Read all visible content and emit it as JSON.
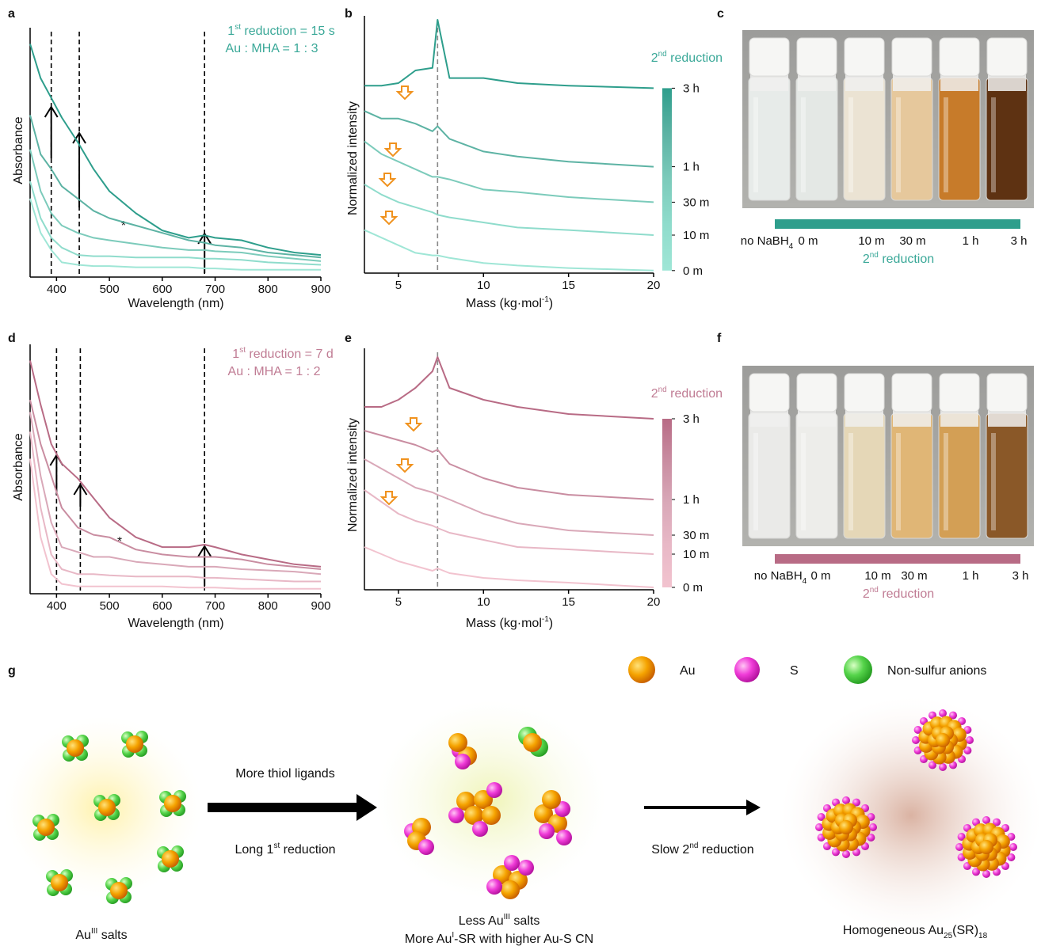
{
  "panel_labels": [
    "a",
    "b",
    "c",
    "d",
    "e",
    "f",
    "g"
  ],
  "chart_data": [
    {
      "type": "line",
      "xlabel": "Wavelength (nm)",
      "ylabel": "Absorbance",
      "annotation": {
        "line1": [
          "1",
          "st",
          " reduction = 15 s"
        ],
        "line2": "Au : MHA = 1 : 3"
      },
      "note_mark": "*",
      "xlim": [
        350,
        900
      ],
      "xticks": [
        400,
        500,
        600,
        700,
        800,
        900
      ],
      "ylim": [
        0,
        1
      ],
      "vlines": [
        390,
        443,
        680
      ],
      "x": [
        350,
        370,
        390,
        410,
        440,
        470,
        500,
        550,
        600,
        650,
        680,
        700,
        750,
        800,
        850,
        900
      ],
      "series": [
        {
          "color": "#2e9e8c",
          "values": [
            0.95,
            0.81,
            0.73,
            0.65,
            0.55,
            0.44,
            0.35,
            0.26,
            0.19,
            0.16,
            0.17,
            0.16,
            0.15,
            0.12,
            0.1,
            0.09
          ]
        },
        {
          "color": "#5db3a4",
          "values": [
            0.66,
            0.5,
            0.44,
            0.37,
            0.32,
            0.27,
            0.24,
            0.21,
            0.18,
            0.15,
            0.14,
            0.13,
            0.12,
            0.1,
            0.09,
            0.08
          ]
        },
        {
          "color": "#7ccbbb",
          "values": [
            0.52,
            0.35,
            0.26,
            0.21,
            0.18,
            0.16,
            0.15,
            0.135,
            0.12,
            0.11,
            0.11,
            0.105,
            0.1,
            0.085,
            0.075,
            0.065
          ]
        },
        {
          "color": "#8fdccc",
          "values": [
            0.39,
            0.24,
            0.16,
            0.12,
            0.09,
            0.085,
            0.085,
            0.08,
            0.08,
            0.08,
            0.075,
            0.075,
            0.07,
            0.06,
            0.055,
            0.05
          ]
        },
        {
          "color": "#9fe6d6",
          "values": [
            0.32,
            0.18,
            0.11,
            0.06,
            0.05,
            0.045,
            0.045,
            0.04,
            0.04,
            0.04,
            0.035,
            0.035,
            0.03,
            0.03,
            0.03,
            0.03
          ]
        }
      ]
    },
    {
      "type": "line",
      "xlabel": [
        "Mass (kg·mol",
        "-1",
        ")"
      ],
      "ylabel": "Normalized intensity",
      "colorbar_title": [
        "2",
        "nd",
        " reduction"
      ],
      "xlim": [
        3,
        20
      ],
      "xticks": [
        5,
        10,
        15,
        20
      ],
      "ylim": [
        0,
        1
      ],
      "vlines": [
        7.3
      ],
      "x": [
        3,
        4,
        5,
        6,
        7,
        7.3,
        8,
        10,
        12,
        15,
        20
      ],
      "series": [
        {
          "name": "3 h",
          "color": "#2e9e8c",
          "values": [
            0.74,
            0.74,
            0.75,
            0.8,
            0.81,
            1.0,
            0.77,
            0.77,
            0.75,
            0.74,
            0.73
          ]
        },
        {
          "name": "1 h",
          "color": "#5db3a4",
          "values": [
            0.64,
            0.61,
            0.61,
            0.59,
            0.56,
            0.58,
            0.53,
            0.48,
            0.46,
            0.44,
            0.42
          ]
        },
        {
          "name": "30 m",
          "color": "#7ccbbb",
          "values": [
            0.52,
            0.47,
            0.44,
            0.41,
            0.38,
            0.38,
            0.37,
            0.33,
            0.32,
            0.3,
            0.28
          ]
        },
        {
          "name": "10 m",
          "color": "#8fdccc",
          "values": [
            0.35,
            0.31,
            0.28,
            0.26,
            0.24,
            0.23,
            0.22,
            0.2,
            0.18,
            0.17,
            0.15
          ]
        },
        {
          "name": "0 m",
          "color": "#9fe6d6",
          "values": [
            0.17,
            0.14,
            0.11,
            0.08,
            0.07,
            0.07,
            0.06,
            0.04,
            0.03,
            0.02,
            0.01
          ]
        }
      ]
    },
    {
      "type": "line",
      "xlabel": "Wavelength (nm)",
      "ylabel": "Absorbance",
      "annotation": {
        "line1": [
          "1",
          "st",
          " reduction = 7 d"
        ],
        "line2": "Au : MHA = 1 : 2"
      },
      "note_mark": "*",
      "xlim": [
        350,
        900
      ],
      "xticks": [
        400,
        500,
        600,
        700,
        800,
        900
      ],
      "ylim": [
        0,
        1
      ],
      "vlines": [
        400,
        445,
        680
      ],
      "x": [
        350,
        370,
        390,
        410,
        440,
        470,
        500,
        550,
        600,
        650,
        680,
        700,
        750,
        800,
        850,
        900
      ],
      "series": [
        {
          "color": "#b86b85",
          "values": [
            0.95,
            0.77,
            0.61,
            0.53,
            0.47,
            0.39,
            0.31,
            0.23,
            0.19,
            0.19,
            0.2,
            0.19,
            0.16,
            0.14,
            0.12,
            0.11
          ]
        },
        {
          "color": "#c98da1",
          "values": [
            0.79,
            0.61,
            0.48,
            0.35,
            0.27,
            0.24,
            0.23,
            0.18,
            0.16,
            0.15,
            0.15,
            0.15,
            0.14,
            0.12,
            0.11,
            0.1
          ]
        },
        {
          "color": "#d9a8b8",
          "values": [
            0.74,
            0.48,
            0.29,
            0.19,
            0.17,
            0.15,
            0.15,
            0.13,
            0.12,
            0.11,
            0.11,
            0.11,
            0.1,
            0.095,
            0.09,
            0.08
          ]
        },
        {
          "color": "#e8b8c6",
          "values": [
            0.66,
            0.35,
            0.16,
            0.1,
            0.08,
            0.08,
            0.075,
            0.07,
            0.07,
            0.07,
            0.065,
            0.065,
            0.06,
            0.055,
            0.05,
            0.05
          ]
        },
        {
          "color": "#f2c3cf",
          "values": [
            0.55,
            0.23,
            0.08,
            0.04,
            0.03,
            0.03,
            0.03,
            0.03,
            0.03,
            0.025,
            0.025,
            0.025,
            0.02,
            0.02,
            0.02,
            0.02
          ]
        }
      ]
    },
    {
      "type": "line",
      "xlabel": [
        "Mass (kg·mol",
        "-1",
        ")"
      ],
      "ylabel": "Normalized intensity",
      "colorbar_title": [
        "2",
        "nd",
        " reduction"
      ],
      "xlim": [
        3,
        20
      ],
      "xticks": [
        5,
        10,
        15,
        20
      ],
      "ylim": [
        0,
        1
      ],
      "vlines": [
        7.3
      ],
      "x": [
        3,
        4,
        5,
        6,
        7,
        7.3,
        8,
        10,
        12,
        15,
        20
      ],
      "series": [
        {
          "name": "3 h",
          "color": "#b86b85",
          "values": [
            0.77,
            0.77,
            0.8,
            0.85,
            0.92,
            0.98,
            0.85,
            0.8,
            0.77,
            0.74,
            0.72
          ]
        },
        {
          "name": "1 h",
          "color": "#c98da1",
          "values": [
            0.67,
            0.65,
            0.63,
            0.61,
            0.58,
            0.59,
            0.53,
            0.47,
            0.43,
            0.4,
            0.38
          ]
        },
        {
          "name": "30 m",
          "color": "#d9a8b8",
          "values": [
            0.55,
            0.51,
            0.47,
            0.43,
            0.41,
            0.4,
            0.38,
            0.32,
            0.28,
            0.25,
            0.23
          ]
        },
        {
          "name": "10 m",
          "color": "#e8b8c6",
          "values": [
            0.42,
            0.37,
            0.32,
            0.29,
            0.27,
            0.26,
            0.24,
            0.21,
            0.18,
            0.17,
            0.15
          ]
        },
        {
          "name": "0 m",
          "color": "#f2c3cf",
          "values": [
            0.18,
            0.15,
            0.12,
            0.1,
            0.08,
            0.09,
            0.07,
            0.05,
            0.04,
            0.03,
            0.01
          ]
        }
      ]
    }
  ],
  "photos": [
    {
      "reagent": {
        "text": "no NaBH",
        "sub": "4"
      },
      "labels": [
        "0 m",
        "10 m",
        "30 m",
        "1 h",
        "3 h"
      ],
      "caption": [
        "2",
        "nd",
        " reduction"
      ]
    },
    {
      "reagent": {
        "text": "no NaBH",
        "sub": "4"
      },
      "labels": [
        "0 m",
        "10 m",
        "30 m",
        "1 h",
        "3 h"
      ],
      "caption": [
        "2",
        "nd",
        " reduction"
      ]
    }
  ],
  "scheme": {
    "legend": [
      "Au",
      "S",
      "Non-sulfur anions"
    ],
    "steps": [
      {
        "above": "More thiol ligands",
        "below": [
          "Long 1",
          "st",
          " reduction"
        ]
      },
      {
        "below": [
          "Slow 2",
          "nd",
          " reduction"
        ]
      }
    ],
    "captions": [
      [
        "Au",
        "III",
        " salts"
      ],
      [
        "Less Au",
        "III",
        " salts"
      ],
      [
        "More Au",
        "I",
        "-SR with higher Au-S CN"
      ],
      [
        "Homogeneous Au",
        "25",
        "(SR)",
        "18"
      ]
    ]
  }
}
